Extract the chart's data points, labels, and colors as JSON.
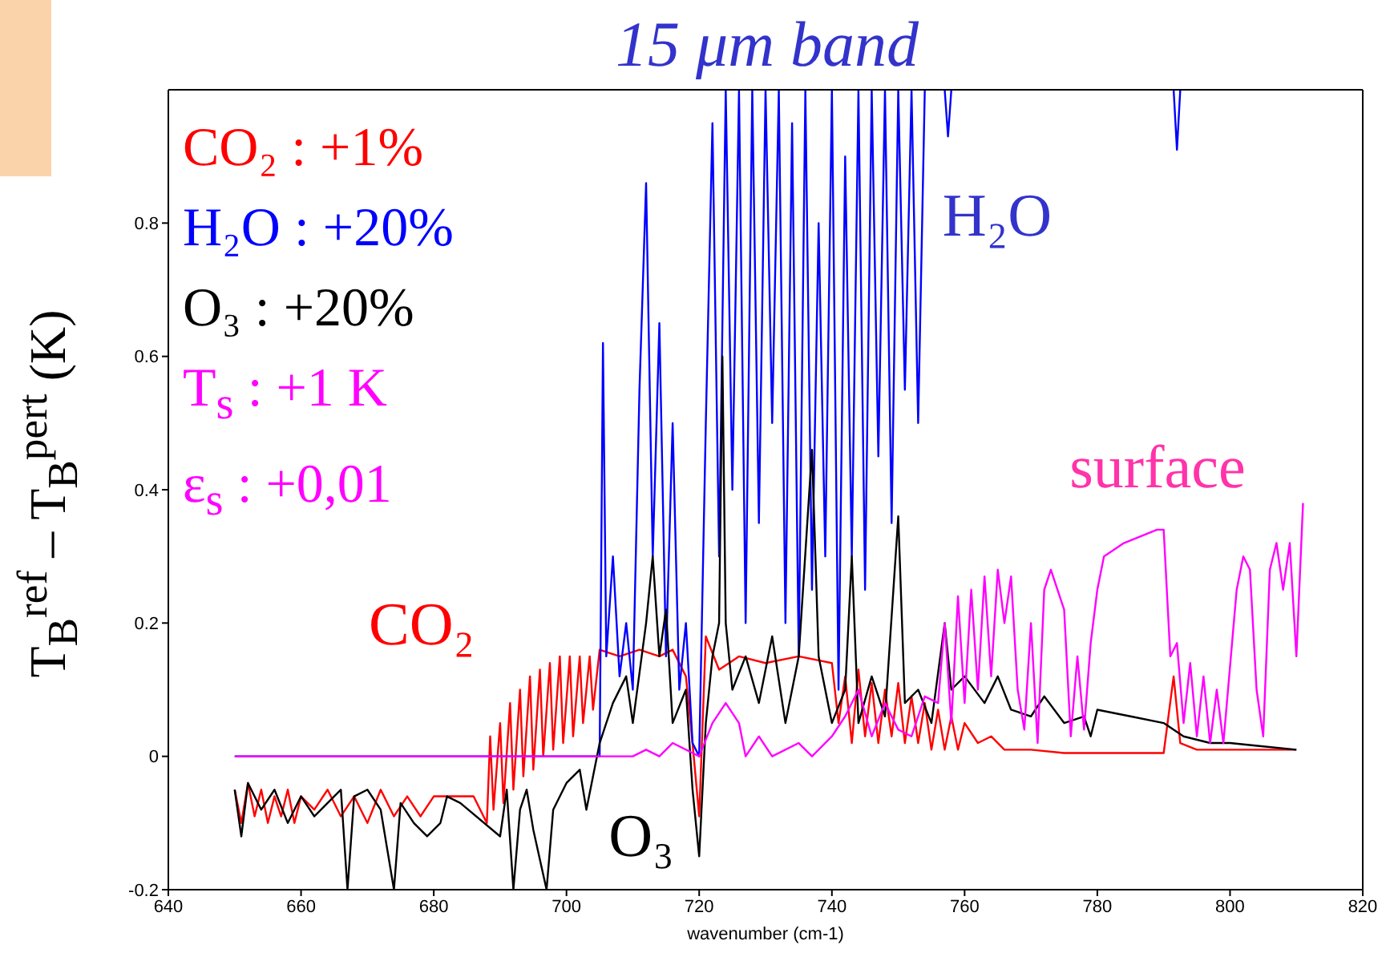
{
  "chart_data": {
    "type": "line",
    "title": "15 μm band",
    "xlabel": "wavenumber (cm-1)",
    "ylabel": "T$_{B}$$^{ref}$ – T$_{B}$$^{pert}$ (K)",
    "xlim": [
      640,
      820
    ],
    "xticks": [
      640,
      660,
      680,
      700,
      720,
      740,
      760,
      780,
      800,
      820
    ],
    "ylim": [
      -0.2,
      1
    ],
    "yticks": [
      -0.2,
      0,
      0.2,
      0.4,
      0.6,
      0.8
    ],
    "legend": "top left",
    "grid": false,
    "marker": "none",
    "line_style": "solid",
    "series": [
      {
        "name": "CO₂ : +1%",
        "color": "#ff0000",
        "x": [
          650,
          651,
          652,
          653,
          654,
          655,
          656,
          657,
          658,
          659,
          660,
          662,
          664,
          666,
          668,
          670,
          672,
          674,
          676,
          678,
          680,
          686,
          688,
          688.5,
          689,
          690,
          690.5,
          691.5,
          692,
          693,
          693.5,
          694.5,
          695,
          696,
          696.5,
          697.5,
          698,
          699,
          699.5,
          700.5,
          701,
          702,
          702.5,
          703.5,
          704,
          705,
          708,
          711,
          714,
          716,
          718,
          719,
          720,
          721,
          723,
          726,
          730,
          735,
          740,
          741,
          742,
          743,
          744,
          745,
          746,
          747,
          748,
          749,
          750,
          751,
          752,
          753,
          754,
          755,
          756,
          757,
          758,
          759,
          760,
          762,
          764,
          766,
          770,
          775,
          780,
          790,
          791.5,
          792.5,
          795,
          800,
          805,
          810
        ],
        "values": [
          -0.05,
          -0.1,
          -0.04,
          -0.09,
          -0.05,
          -0.1,
          -0.06,
          -0.09,
          -0.05,
          -0.1,
          -0.06,
          -0.08,
          -0.05,
          -0.09,
          -0.06,
          -0.1,
          -0.05,
          -0.09,
          -0.06,
          -0.09,
          -0.06,
          -0.06,
          -0.1,
          0.03,
          -0.08,
          0.05,
          -0.07,
          0.08,
          -0.05,
          0.1,
          -0.03,
          0.12,
          -0.02,
          0.13,
          0,
          0.14,
          0.01,
          0.15,
          0.02,
          0.15,
          0.03,
          0.15,
          0.05,
          0.15,
          0.07,
          0.16,
          0.15,
          0.16,
          0.15,
          0.16,
          0.12,
          0.02,
          -0.09,
          0.18,
          0.13,
          0.15,
          0.14,
          0.15,
          0.14,
          0.05,
          0.12,
          0.02,
          0.13,
          0.03,
          0.11,
          0.02,
          0.1,
          0.03,
          0.11,
          0.02,
          0.09,
          0.02,
          0.08,
          0.01,
          0.07,
          0.01,
          0.06,
          0.01,
          0.05,
          0.02,
          0.03,
          0.01,
          0.01,
          0.005,
          0.005,
          0.005,
          0.12,
          0.02,
          0.01,
          0.01,
          0.01,
          0.01
        ]
      },
      {
        "name": "H₂O : +20%",
        "color": "#0000ff",
        "x": [
          650,
          705,
          705.5,
          706,
          707,
          708,
          709,
          710,
          711,
          712,
          713,
          714,
          715,
          716,
          717,
          718,
          719,
          720,
          721,
          722,
          723,
          724,
          725,
          726,
          727,
          728,
          729,
          730,
          731,
          732,
          733,
          734,
          735,
          736,
          737,
          738,
          739,
          740,
          741,
          742,
          743,
          744,
          745,
          746,
          747,
          748,
          749,
          750,
          751,
          752,
          753,
          754,
          755,
          757,
          757.5,
          758,
          760,
          791.5,
          792,
          792.5
        ],
        "values": [
          0,
          0,
          0.62,
          0.15,
          0.3,
          0.12,
          0.2,
          0.1,
          0.55,
          0.86,
          0.3,
          0.65,
          0.15,
          0.5,
          0.1,
          0.2,
          0.02,
          0,
          0.5,
          0.95,
          0.3,
          1,
          0.4,
          1,
          0.2,
          1,
          0.35,
          1,
          0.5,
          1,
          0.2,
          0.95,
          0.15,
          1,
          0.25,
          0.8,
          0.3,
          1,
          0.1,
          0.9,
          0.3,
          1,
          0.25,
          1,
          0.45,
          1,
          0.35,
          1,
          0.55,
          1,
          0.5,
          1,
          null,
          1,
          0.93,
          1,
          null,
          1,
          0.91,
          1
        ]
      },
      {
        "name": "O₃ : +20%",
        "color": "#000000",
        "x": [
          650,
          651,
          652,
          654,
          656,
          658,
          660,
          662,
          664,
          666,
          667,
          668,
          670,
          672,
          674,
          675,
          677,
          679,
          681,
          682,
          684,
          690,
          691,
          692,
          693,
          694,
          695,
          697,
          698,
          700,
          702,
          703,
          705,
          707,
          709,
          710,
          712,
          713,
          714,
          715,
          716,
          718,
          719,
          720,
          721,
          722,
          723,
          723.5,
          724,
          725,
          727,
          729,
          731,
          733,
          735,
          737,
          738,
          740,
          742,
          743,
          744,
          746,
          748,
          750,
          751,
          753,
          755,
          757,
          758,
          760,
          763,
          765,
          767,
          770,
          772,
          775,
          778,
          779,
          780,
          785,
          790,
          793,
          797,
          800,
          805,
          810
        ],
        "values": [
          -0.05,
          -0.12,
          -0.04,
          -0.08,
          -0.05,
          -0.1,
          -0.06,
          -0.09,
          -0.07,
          -0.05,
          -0.2,
          -0.06,
          -0.05,
          -0.08,
          -0.2,
          -0.07,
          -0.1,
          -0.12,
          -0.1,
          -0.06,
          -0.07,
          -0.12,
          -0.05,
          -0.2,
          -0.08,
          -0.05,
          -0.11,
          -0.2,
          -0.08,
          -0.04,
          -0.02,
          -0.08,
          0.02,
          0.08,
          0.12,
          0.05,
          0.2,
          0.3,
          0.15,
          0.22,
          0.05,
          0.1,
          -0.05,
          -0.15,
          0.05,
          0.15,
          0.2,
          0.6,
          0.2,
          0.1,
          0.15,
          0.08,
          0.18,
          0.05,
          0.15,
          0.46,
          0.15,
          0.05,
          0.1,
          0.3,
          0.05,
          0.12,
          0.06,
          0.36,
          0.08,
          0.1,
          0.05,
          0.2,
          0.1,
          0.12,
          0.08,
          0.12,
          0.07,
          0.06,
          0.09,
          0.05,
          0.06,
          0.03,
          0.07,
          0.06,
          0.05,
          0.03,
          0.02,
          0.02,
          0.015,
          0.01
        ]
      },
      {
        "name": "T$_{s}$ : +1 K",
        "color": "#ff00ff",
        "x": [
          650,
          710,
          712,
          714,
          716,
          720,
          722,
          724,
          726,
          727,
          729,
          731,
          735,
          737,
          740,
          742,
          744,
          746,
          748,
          750,
          752,
          754,
          756,
          757,
          758,
          759,
          760,
          761,
          762,
          763,
          764,
          765,
          766,
          767,
          768,
          769,
          770,
          771,
          772,
          773,
          775,
          776,
          777,
          778,
          779,
          780,
          781,
          784,
          789,
          790,
          791,
          792,
          793,
          794,
          795,
          796,
          797,
          798,
          799,
          801,
          802,
          803,
          804,
          805,
          806,
          807,
          808,
          809,
          810,
          811
        ],
        "values": [
          0,
          0,
          0.01,
          0,
          0.02,
          0,
          0.05,
          0.08,
          0.05,
          0,
          0.03,
          0,
          0.02,
          0,
          0.03,
          0.06,
          0.1,
          0.03,
          0.08,
          0.04,
          0.03,
          0.09,
          0.08,
          0.2,
          0.05,
          0.24,
          0.08,
          0.25,
          0.1,
          0.27,
          0.12,
          0.28,
          0.2,
          0.27,
          0.1,
          0.04,
          0.2,
          0.02,
          0.25,
          0.28,
          0.22,
          0.03,
          0.15,
          0.04,
          0.17,
          0.25,
          0.3,
          0.32,
          0.34,
          0.34,
          0.15,
          0.17,
          0.05,
          0.14,
          0.03,
          0.12,
          0.02,
          0.1,
          0.02,
          0.25,
          0.3,
          0.28,
          0.1,
          0.03,
          0.28,
          0.32,
          0.25,
          0.32,
          0.15,
          0.38
        ]
      }
    ],
    "annotations": [
      "CO₂",
      "H₂O",
      "O₃",
      "surface",
      "ε$_{s}$ : +0,01"
    ]
  }
}
